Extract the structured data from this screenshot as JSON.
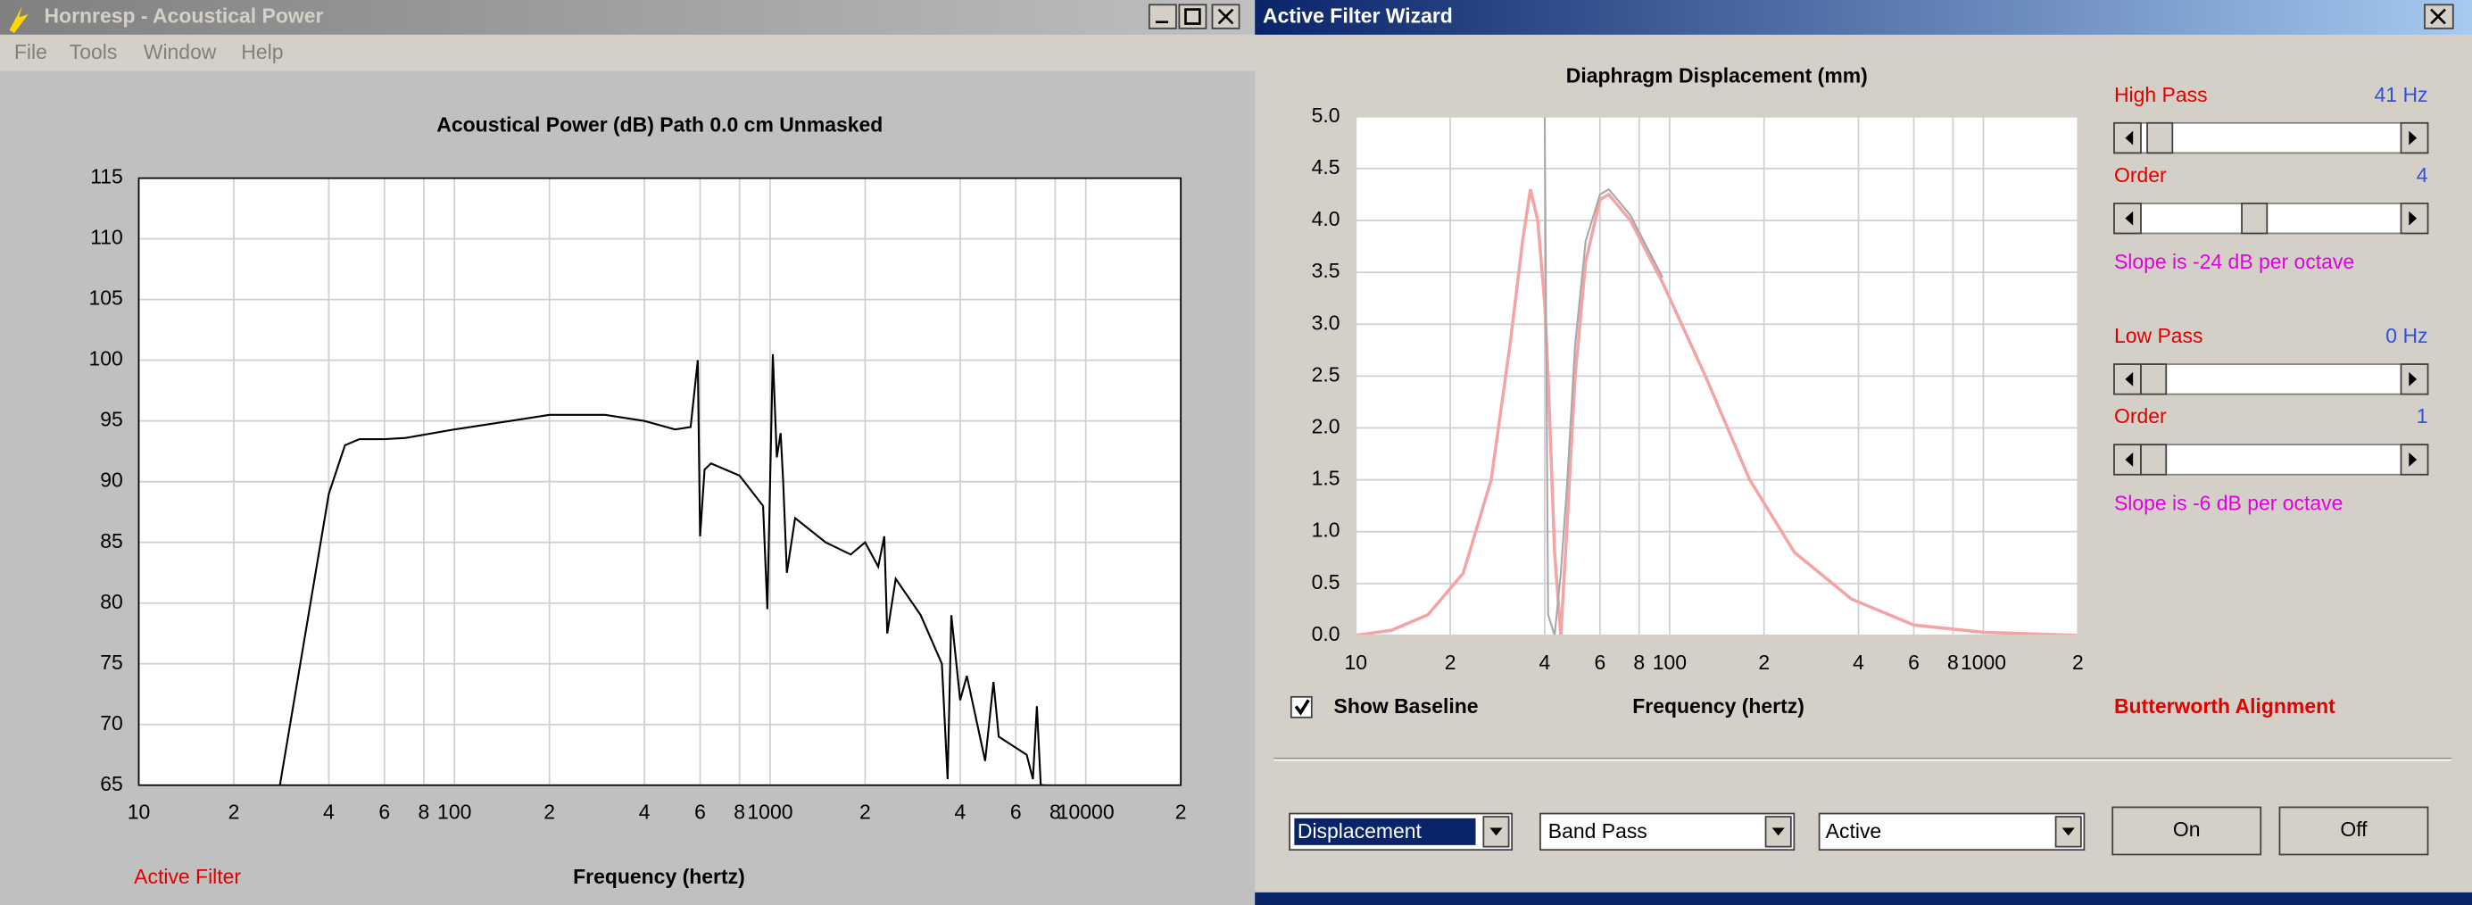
{
  "left_window": {
    "title": "Hornresp - Acoustical Power",
    "menu": [
      "File",
      "Tools",
      "Window",
      "Help"
    ],
    "footer": "Active Filter"
  },
  "right_window": {
    "title": "Active Filter Wizard",
    "show_baseline": "Show Baseline",
    "high_pass": {
      "label": "High Pass",
      "value": "41 Hz",
      "order_label": "Order",
      "order": "4",
      "slope": "Slope is -24 dB per octave"
    },
    "low_pass": {
      "label": "Low Pass",
      "value": "0 Hz",
      "order_label": "Order",
      "order": "1",
      "slope": "Slope is -6 dB per octave"
    },
    "alignment": "Butterworth Alignment",
    "dropdowns": [
      "Displacement",
      "Band Pass",
      "Active"
    ],
    "buttons": [
      "On",
      "Off"
    ]
  },
  "chart_data": [
    {
      "type": "line",
      "title": "Acoustical Power (dB)   Path 0.0 cm   Unmasked",
      "x_label": "Frequency (hertz)",
      "x": [
        28,
        35,
        40,
        45,
        50,
        60,
        70,
        100,
        150,
        200,
        300,
        400,
        500,
        560,
        590,
        600,
        620,
        650,
        800,
        950,
        980,
        1000,
        1020,
        1050,
        1080,
        1100,
        1130,
        1200,
        1500,
        1800,
        2000,
        2200,
        2300,
        2350,
        2500,
        3000,
        3500,
        3650,
        3750,
        4000,
        4200,
        4800,
        5100,
        5300,
        6500,
        6800,
        7000,
        7200,
        7400
      ],
      "series": [
        {
          "color": "#000000",
          "values": [
            65,
            80,
            89,
            93,
            93.5,
            93.5,
            93.6,
            94.3,
            95,
            95.5,
            95.5,
            95,
            94.3,
            94.5,
            100,
            85.5,
            91,
            91.5,
            90.5,
            88,
            79.5,
            90,
            100.5,
            92,
            94,
            90,
            82.5,
            87,
            85,
            84,
            85,
            83,
            85.5,
            77.5,
            82,
            79,
            75,
            65.5,
            79,
            72,
            74,
            67,
            73.5,
            69,
            67.5,
            65.5,
            71.5,
            65,
            65
          ]
        }
      ],
      "xscale": "log",
      "xlim": [
        10,
        20000
      ],
      "xticks": [
        10,
        {
          "value": 20,
          "label": "2"
        },
        {
          "value": 40,
          "label": "4"
        },
        {
          "value": 60,
          "label": "6"
        },
        {
          "value": 80,
          "label": "8"
        },
        100,
        {
          "value": 200,
          "label": "2"
        },
        {
          "value": 400,
          "label": "4"
        },
        {
          "value": 600,
          "label": "6"
        },
        {
          "value": 800,
          "label": "8"
        },
        1000,
        {
          "value": 2000,
          "label": "2"
        },
        {
          "value": 4000,
          "label": "4"
        },
        {
          "value": 6000,
          "label": "6"
        },
        {
          "value": 8000,
          "label": "8"
        },
        10000,
        {
          "value": 20000,
          "label": "2"
        }
      ],
      "ylim": [
        65,
        115
      ],
      "yticks": [
        65,
        70,
        75,
        80,
        85,
        90,
        95,
        100,
        105,
        110,
        115
      ],
      "grid": true
    },
    {
      "type": "line",
      "title": "Diaphragm Displacement (mm)",
      "x_label": "Frequency (hertz)",
      "x": [
        10,
        13,
        17,
        22,
        27,
        31,
        34,
        36,
        38,
        40,
        41,
        43,
        45,
        47,
        50,
        54,
        60,
        64,
        75,
        95,
        130,
        180,
        250,
        380,
        600,
        1000,
        2000
      ],
      "series": [
        {
          "color": "#f4a4a4",
          "values": [
            0,
            0.05,
            0.2,
            0.6,
            1.5,
            2.8,
            3.8,
            4.3,
            4.0,
            3.2,
            2.5,
            0.8,
            0,
            1.0,
            2.5,
            3.6,
            4.2,
            4.25,
            4.0,
            3.4,
            2.5,
            1.5,
            0.8,
            0.35,
            0.1,
            0.03,
            0
          ]
        },
        {
          "color": "#a8a8a8",
          "values": [
            null,
            null,
            null,
            null,
            null,
            null,
            null,
            null,
            null,
            5.0,
            0.2,
            0,
            0.6,
            1.4,
            2.8,
            3.8,
            4.25,
            4.3,
            4.05,
            3.45,
            null,
            null,
            null,
            null,
            null,
            null,
            null
          ]
        }
      ],
      "xscale": "log",
      "xlim": [
        10,
        2000
      ],
      "xticks": [
        10,
        {
          "value": 20,
          "label": "2"
        },
        {
          "value": 40,
          "label": "4"
        },
        {
          "value": 60,
          "label": "6"
        },
        {
          "value": 80,
          "label": "8"
        },
        100,
        {
          "value": 200,
          "label": "2"
        },
        {
          "value": 400,
          "label": "4"
        },
        {
          "value": 600,
          "label": "6"
        },
        {
          "value": 800,
          "label": "8"
        },
        1000,
        {
          "value": 2000,
          "label": "2"
        }
      ],
      "ylim": [
        0,
        5
      ],
      "yticks": [
        {
          "value": 0,
          "label": "0.0"
        },
        0.5,
        {
          "value": 1,
          "label": "1.0"
        },
        1.5,
        {
          "value": 2,
          "label": "2.0"
        },
        2.5,
        {
          "value": 3,
          "label": "3.0"
        },
        3.5,
        {
          "value": 4,
          "label": "4.0"
        },
        4.5,
        {
          "value": 5,
          "label": "5.0"
        }
      ],
      "grid": true
    }
  ]
}
